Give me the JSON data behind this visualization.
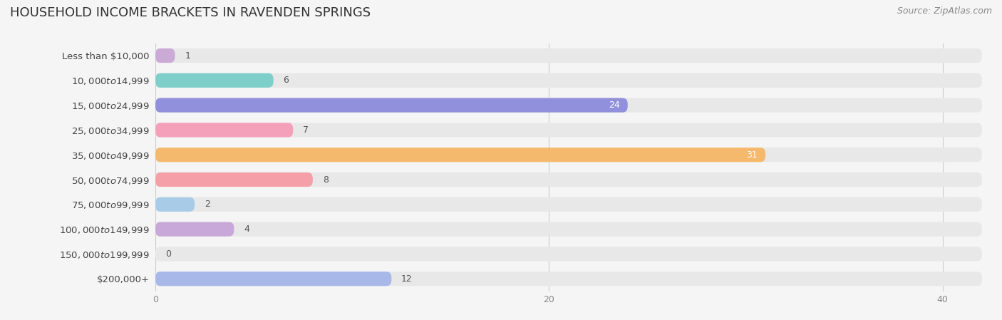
{
  "title": "HOUSEHOLD INCOME BRACKETS IN RAVENDEN SPRINGS",
  "source": "Source: ZipAtlas.com",
  "categories": [
    "Less than $10,000",
    "$10,000 to $14,999",
    "$15,000 to $24,999",
    "$25,000 to $34,999",
    "$35,000 to $49,999",
    "$50,000 to $74,999",
    "$75,000 to $99,999",
    "$100,000 to $149,999",
    "$150,000 to $199,999",
    "$200,000+"
  ],
  "values": [
    1,
    6,
    24,
    7,
    31,
    8,
    2,
    4,
    0,
    12
  ],
  "bar_colors": [
    "#cbaad6",
    "#7ececa",
    "#9090dc",
    "#f5a0bb",
    "#f5b96e",
    "#f5a0a8",
    "#a8cce8",
    "#c8a8d8",
    "#7ececa",
    "#a8b8e8"
  ],
  "xlim": [
    0,
    42
  ],
  "xticks": [
    0,
    20,
    40
  ],
  "background_color": "#f5f5f5",
  "row_bg_color": "#e8e8e8",
  "title_fontsize": 13,
  "label_fontsize": 9.5,
  "value_fontsize": 9,
  "source_fontsize": 9,
  "bar_height": 0.58
}
